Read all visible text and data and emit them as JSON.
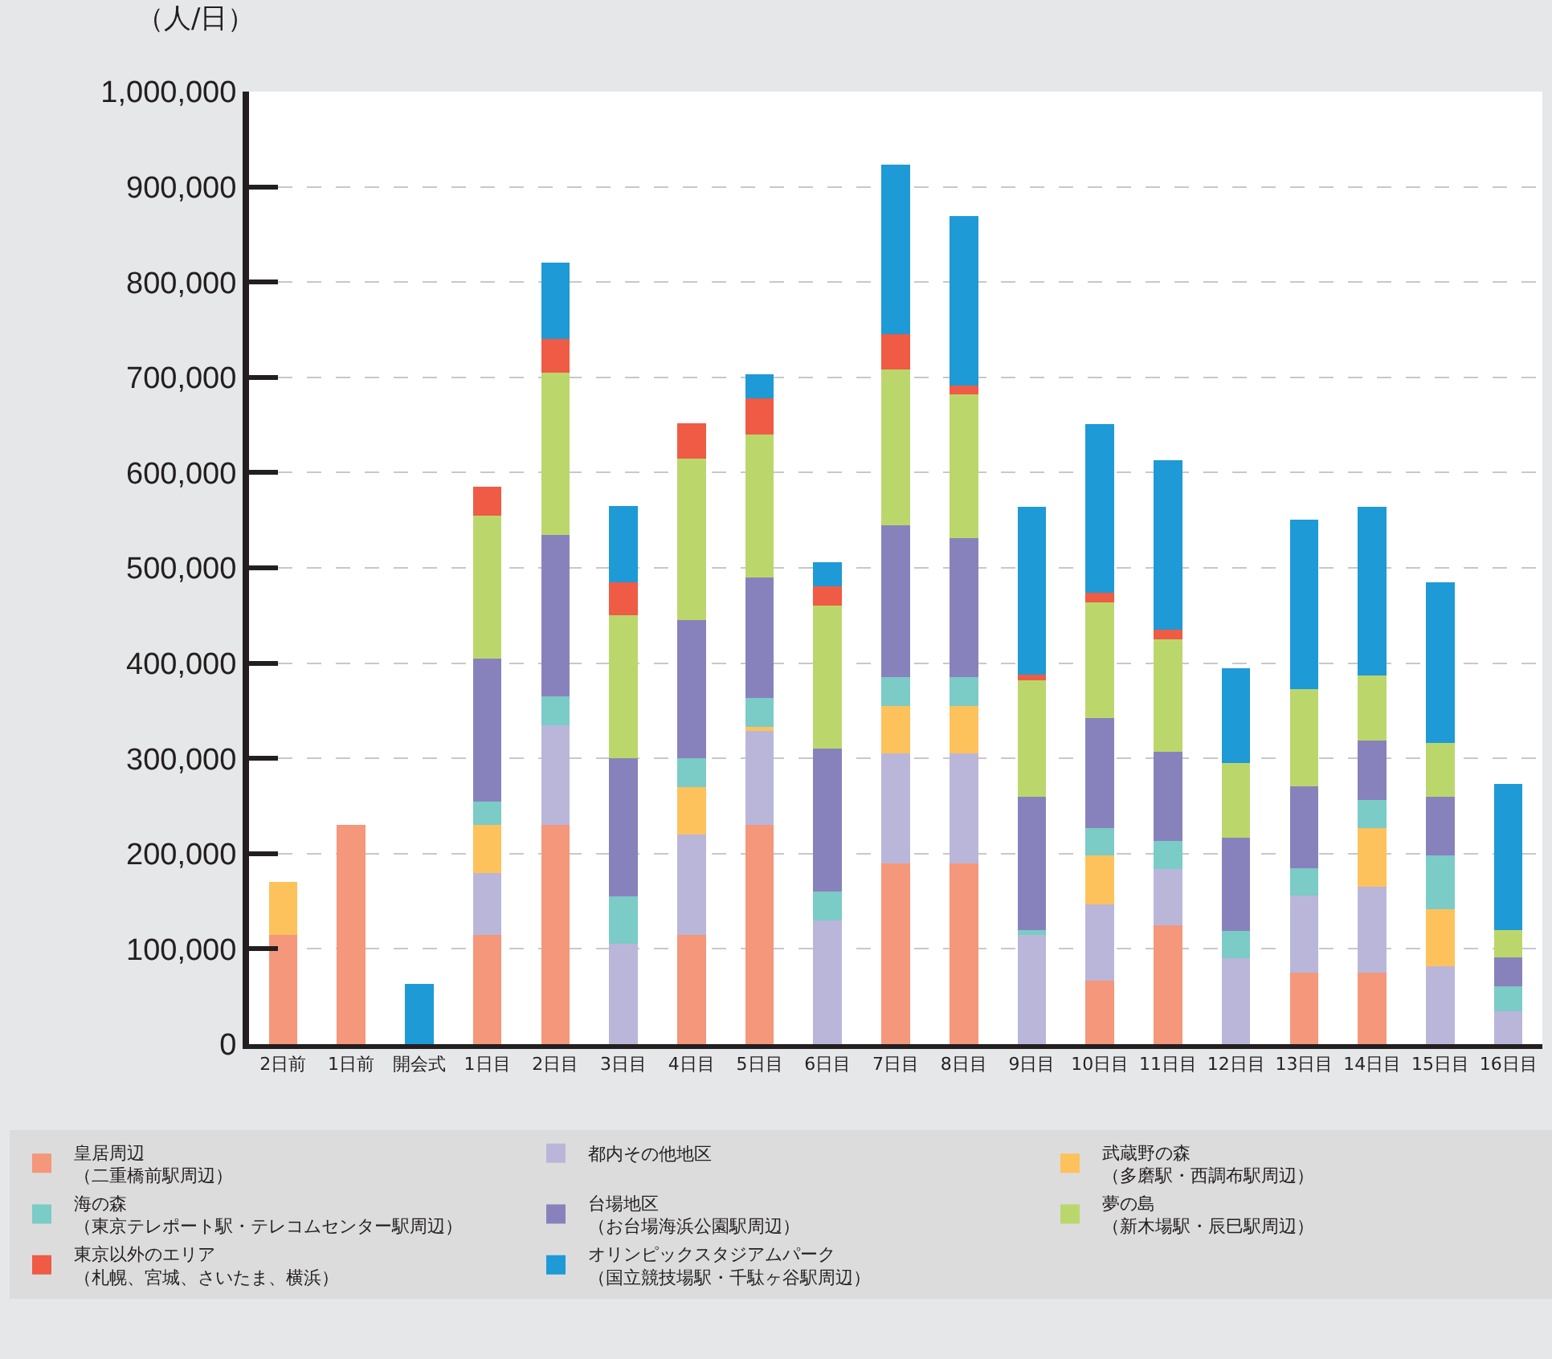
{
  "chart_data": {
    "type": "bar",
    "stacked": true,
    "ylabel": "（人/日）",
    "categories": [
      "2日前",
      "1日前",
      "開会式",
      "1日目",
      "2日目",
      "3日目",
      "4日目",
      "5日目",
      "6日目",
      "7日目",
      "8日目",
      "9日目",
      "10日目",
      "11日目",
      "12日目",
      "13日目",
      "14日目",
      "15日目",
      "16日目"
    ],
    "series": [
      {
        "name": "皇居周辺（二重橋前駅周辺）",
        "color": "#f4977a",
        "values": [
          115000,
          230000,
          null,
          115000,
          230000,
          null,
          115000,
          230000,
          null,
          190000,
          190000,
          null,
          67000,
          125000,
          null,
          75000,
          75000,
          null,
          null
        ]
      },
      {
        "name": "都内その他地区",
        "color": "#bab6da",
        "values": [
          null,
          null,
          null,
          65000,
          105000,
          105000,
          105000,
          100000,
          130000,
          115000,
          115000,
          115000,
          80000,
          59000,
          90000,
          81000,
          90000,
          82000,
          35000
        ]
      },
      {
        "name": "武蔵野の森（多磨駅・西調布駅周辺）",
        "color": "#fdc25c",
        "values": [
          55000,
          null,
          null,
          50000,
          null,
          null,
          50000,
          3000,
          null,
          50000,
          50000,
          null,
          51000,
          null,
          null,
          null,
          62000,
          60000,
          null
        ]
      },
      {
        "name": "海の森（東京テレポート駅・テレコムセンター駅周辺）",
        "color": "#7bcbc6",
        "values": [
          null,
          null,
          null,
          25000,
          30000,
          50000,
          30000,
          30000,
          30000,
          30000,
          30000,
          5000,
          29000,
          29000,
          29000,
          29000,
          29000,
          56000,
          26000
        ]
      },
      {
        "name": "台場地区（お台場海浜公園駅周辺）",
        "color": "#8882bc",
        "values": [
          null,
          null,
          null,
          150000,
          170000,
          145000,
          145000,
          127000,
          150000,
          160000,
          146000,
          140000,
          115000,
          94000,
          98000,
          86000,
          63000,
          62000,
          30000
        ]
      },
      {
        "name": "夢の島（新木場駅・辰巳駅周辺）",
        "color": "#bbd76c",
        "values": [
          null,
          null,
          null,
          150000,
          170000,
          150000,
          170000,
          150000,
          150000,
          163000,
          151000,
          122000,
          122000,
          118000,
          78000,
          102000,
          68000,
          56000,
          29000
        ]
      },
      {
        "name": "東京以外のエリア（札幌、宮城、さいたま、横浜）",
        "color": "#ef5b44",
        "values": [
          null,
          null,
          null,
          30000,
          35000,
          35000,
          37000,
          38000,
          21000,
          37000,
          9000,
          6000,
          10000,
          10000,
          null,
          null,
          null,
          null,
          null
        ]
      },
      {
        "name": "オリンピックスタジアムパーク（国立競技場駅・千駄ヶ谷駅周辺）",
        "color": "#1e9ad6",
        "values": [
          null,
          null,
          63000,
          null,
          80000,
          80000,
          null,
          25000,
          25000,
          178000,
          178000,
          176000,
          177000,
          178000,
          100000,
          178000,
          177000,
          169000,
          153000
        ]
      }
    ],
    "ylim": [
      0,
      1000000
    ],
    "yticks": [
      0,
      {
        "value": 100000,
        "label": "100,000"
      },
      {
        "value": 200000,
        "label": "200,000"
      },
      {
        "value": 300000,
        "label": "300,000"
      },
      {
        "value": 400000,
        "label": "400,000"
      },
      {
        "value": 500000,
        "label": "500,000"
      },
      {
        "value": 600000,
        "label": "600,000"
      },
      {
        "value": 700000,
        "label": "700,000"
      },
      {
        "value": 800000,
        "label": "800,000"
      },
      {
        "value": 900000,
        "label": "900,000"
      },
      {
        "value": 1000000,
        "label": "1,000,000"
      }
    ],
    "grid": "y",
    "legend": "bottom"
  }
}
